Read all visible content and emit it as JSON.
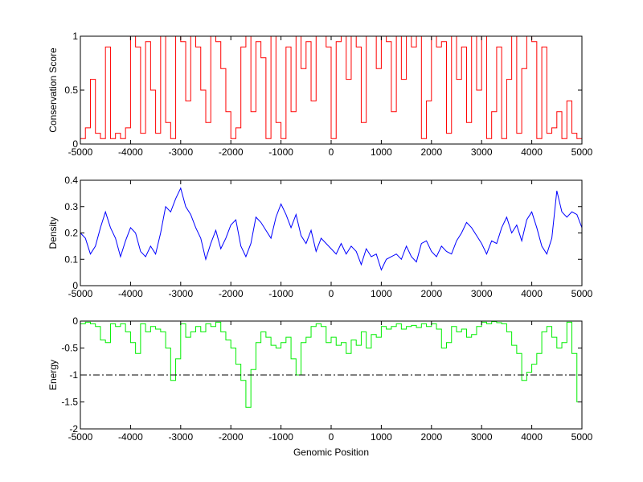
{
  "chart_data": [
    {
      "type": "line",
      "ylabel": "Conservation Score",
      "xlabel": "",
      "xlim": [
        -5000,
        5000
      ],
      "ylim": [
        0,
        1
      ],
      "xticks": [
        "-5000",
        "-4000",
        "-3000",
        "-2000",
        "-1000",
        "0",
        "1000",
        "2000",
        "3000",
        "4000",
        "5000"
      ],
      "yticks": [
        "0",
        "0.5",
        "1"
      ],
      "color": "#ff0000",
      "style": "step",
      "series": [
        {
          "x": [
            -5000,
            -4900,
            -4800,
            -4700,
            -4600,
            -4500,
            -4400,
            -4300,
            -4200,
            -4100,
            -4000,
            -3900,
            -3800,
            -3700,
            -3600,
            -3500,
            -3400,
            -3300,
            -3200,
            -3100,
            -3000,
            -2900,
            -2800,
            -2700,
            -2600,
            -2500,
            -2400,
            -2300,
            -2200,
            -2100,
            -2000,
            -1900,
            -1800,
            -1700,
            -1600,
            -1500,
            -1400,
            -1300,
            -1200,
            -1100,
            -1000,
            -900,
            -800,
            -700,
            -600,
            -500,
            -400,
            -300,
            -200,
            -100,
            0,
            100,
            200,
            300,
            400,
            500,
            600,
            700,
            800,
            900,
            1000,
            1100,
            1200,
            1300,
            1400,
            1500,
            1600,
            1700,
            1800,
            1900,
            2000,
            2100,
            2200,
            2300,
            2400,
            2500,
            2600,
            2700,
            2800,
            2900,
            3000,
            3100,
            3200,
            3300,
            3400,
            3500,
            3600,
            3700,
            3800,
            3900,
            4000,
            4100,
            4200,
            4300,
            4400,
            4500,
            4600,
            4700,
            4800,
            4900
          ],
          "y": [
            0.05,
            0.15,
            0.6,
            0.1,
            0.05,
            0.9,
            0.05,
            0.1,
            0.05,
            0.15,
            1,
            0.9,
            0.1,
            0.95,
            0.5,
            0.1,
            1,
            0.2,
            0.05,
            1,
            0.95,
            0.4,
            1,
            0.9,
            0.5,
            0.2,
            1,
            0.95,
            0.7,
            0.3,
            0.05,
            0.15,
            0.9,
            1,
            0.3,
            0.95,
            0.8,
            0.05,
            1,
            0.2,
            0.05,
            0.9,
            0.3,
            1,
            0.7,
            0.95,
            0.4,
            1,
            1,
            0.9,
            0.05,
            0.95,
            1,
            0.6,
            1,
            0.9,
            0.2,
            1,
            1,
            0.7,
            1,
            0.95,
            0.3,
            1,
            0.6,
            1,
            0.9,
            1,
            0.05,
            0.4,
            1,
            0.9,
            0.95,
            0.1,
            1,
            0.6,
            0.9,
            0.2,
            1,
            0.5,
            1,
            0.05,
            0.3,
            0.9,
            0.05,
            0.6,
            1,
            0.1,
            0.7,
            1,
            0.95,
            0.05,
            0.9,
            0.1,
            0.15,
            0.3,
            0.05,
            0.4,
            0.1,
            0.05
          ]
        }
      ]
    },
    {
      "type": "line",
      "ylabel": "Density",
      "xlabel": "",
      "xlim": [
        -5000,
        5000
      ],
      "ylim": [
        0,
        0.4
      ],
      "xticks": [
        "-5000",
        "-4000",
        "-3000",
        "-2000",
        "-1000",
        "0",
        "1000",
        "2000",
        "3000",
        "4000",
        "5000"
      ],
      "yticks": [
        "0",
        "0.1",
        "0.2",
        "0.3",
        "0.4"
      ],
      "color": "#0000ff",
      "style": "line",
      "series": [
        {
          "x": [
            -5000,
            -4900,
            -4800,
            -4700,
            -4600,
            -4500,
            -4400,
            -4300,
            -4200,
            -4100,
            -4000,
            -3900,
            -3800,
            -3700,
            -3600,
            -3500,
            -3400,
            -3300,
            -3200,
            -3100,
            -3000,
            -2900,
            -2800,
            -2700,
            -2600,
            -2500,
            -2400,
            -2300,
            -2200,
            -2100,
            -2000,
            -1900,
            -1800,
            -1700,
            -1600,
            -1500,
            -1400,
            -1300,
            -1200,
            -1100,
            -1000,
            -900,
            -800,
            -700,
            -600,
            -500,
            -400,
            -300,
            -200,
            -100,
            0,
            100,
            200,
            300,
            400,
            500,
            600,
            700,
            800,
            900,
            1000,
            1100,
            1200,
            1300,
            1400,
            1500,
            1600,
            1700,
            1800,
            1900,
            2000,
            2100,
            2200,
            2300,
            2400,
            2500,
            2600,
            2700,
            2800,
            2900,
            3000,
            3100,
            3200,
            3300,
            3400,
            3500,
            3600,
            3700,
            3800,
            3900,
            4000,
            4100,
            4200,
            4300,
            4400,
            4500,
            4600,
            4700,
            4800,
            4900,
            5000
          ],
          "y": [
            0.2,
            0.18,
            0.12,
            0.15,
            0.22,
            0.28,
            0.22,
            0.18,
            0.11,
            0.17,
            0.22,
            0.2,
            0.13,
            0.11,
            0.15,
            0.12,
            0.2,
            0.3,
            0.28,
            0.33,
            0.37,
            0.3,
            0.27,
            0.22,
            0.18,
            0.1,
            0.16,
            0.21,
            0.14,
            0.18,
            0.23,
            0.25,
            0.15,
            0.11,
            0.16,
            0.26,
            0.24,
            0.21,
            0.18,
            0.26,
            0.31,
            0.27,
            0.22,
            0.27,
            0.19,
            0.16,
            0.21,
            0.13,
            0.18,
            0.16,
            0.14,
            0.12,
            0.16,
            0.12,
            0.15,
            0.13,
            0.08,
            0.14,
            0.11,
            0.12,
            0.06,
            0.1,
            0.11,
            0.12,
            0.1,
            0.15,
            0.11,
            0.09,
            0.16,
            0.17,
            0.13,
            0.11,
            0.15,
            0.13,
            0.12,
            0.17,
            0.2,
            0.24,
            0.22,
            0.19,
            0.16,
            0.12,
            0.17,
            0.16,
            0.22,
            0.26,
            0.2,
            0.23,
            0.17,
            0.25,
            0.28,
            0.22,
            0.15,
            0.12,
            0.18,
            0.36,
            0.28,
            0.26,
            0.28,
            0.27,
            0.22
          ]
        }
      ]
    },
    {
      "type": "line",
      "ylabel": "Energy",
      "xlabel": "Genomic Position",
      "xlim": [
        -5000,
        5000
      ],
      "ylim": [
        -2,
        0
      ],
      "xticks": [
        "-5000",
        "-4000",
        "-3000",
        "-2000",
        "-1000",
        "0",
        "1000",
        "2000",
        "3000",
        "4000",
        "5000"
      ],
      "yticks": [
        "-2",
        "-1.5",
        "-1",
        "-0.5",
        "0"
      ],
      "color": "#00ee00",
      "style": "step",
      "reference_line": {
        "y": -1,
        "color": "#000000",
        "style": "dash-dot"
      },
      "series": [
        {
          "x": [
            -5000,
            -4900,
            -4800,
            -4700,
            -4600,
            -4500,
            -4400,
            -4300,
            -4200,
            -4100,
            -4000,
            -3900,
            -3800,
            -3700,
            -3600,
            -3500,
            -3400,
            -3300,
            -3200,
            -3100,
            -3000,
            -2900,
            -2800,
            -2700,
            -2600,
            -2500,
            -2400,
            -2300,
            -2200,
            -2100,
            -2000,
            -1900,
            -1800,
            -1700,
            -1600,
            -1500,
            -1400,
            -1300,
            -1200,
            -1100,
            -1000,
            -900,
            -800,
            -700,
            -600,
            -500,
            -400,
            -300,
            -200,
            -100,
            0,
            100,
            200,
            300,
            400,
            500,
            600,
            700,
            800,
            900,
            1000,
            1100,
            1200,
            1300,
            1400,
            1500,
            1600,
            1700,
            1800,
            1900,
            2000,
            2100,
            2200,
            2300,
            2400,
            2500,
            2600,
            2700,
            2800,
            2900,
            3000,
            3100,
            3200,
            3300,
            3400,
            3500,
            3600,
            3700,
            3800,
            3900,
            4000,
            4100,
            4200,
            4300,
            4400,
            4500,
            4600,
            4700,
            4800,
            4900,
            5000
          ],
          "y": [
            -0.05,
            -0.02,
            -0.05,
            -0.1,
            -0.35,
            -0.4,
            -0.05,
            -0.1,
            -0.05,
            -0.2,
            -0.4,
            -0.6,
            -0.05,
            -0.2,
            -0.1,
            -0.15,
            -0.2,
            -0.5,
            -1.1,
            -0.7,
            -0.05,
            -0.3,
            -0.2,
            -0.1,
            -0.2,
            -0.05,
            -0.1,
            -0.02,
            -0.2,
            -0.35,
            -0.5,
            -0.8,
            -1.1,
            -1.6,
            -0.9,
            -0.4,
            -0.2,
            -0.3,
            -0.45,
            -0.5,
            -0.4,
            -0.3,
            -0.7,
            -1.0,
            -0.4,
            -0.3,
            -0.1,
            -0.05,
            -0.1,
            -0.4,
            -0.3,
            -0.45,
            -0.4,
            -0.6,
            -0.35,
            -0.45,
            -0.2,
            -0.5,
            -0.25,
            -0.3,
            -0.1,
            -0.15,
            -0.1,
            -0.05,
            -0.15,
            -0.1,
            -0.08,
            -0.12,
            -0.05,
            -0.1,
            -0.05,
            -0.15,
            -0.5,
            -0.4,
            -0.1,
            -0.2,
            -0.15,
            -0.3,
            -0.25,
            -0.1,
            -0.02,
            -0.05,
            -0.01,
            -0.03,
            -0.05,
            -0.2,
            -0.45,
            -0.6,
            -1.1,
            -0.95,
            -0.8,
            -0.6,
            -0.2,
            -0.1,
            -0.3,
            -0.5,
            -0.4,
            -0.02,
            -0.6,
            -1.5,
            -1.5
          ]
        }
      ]
    }
  ]
}
